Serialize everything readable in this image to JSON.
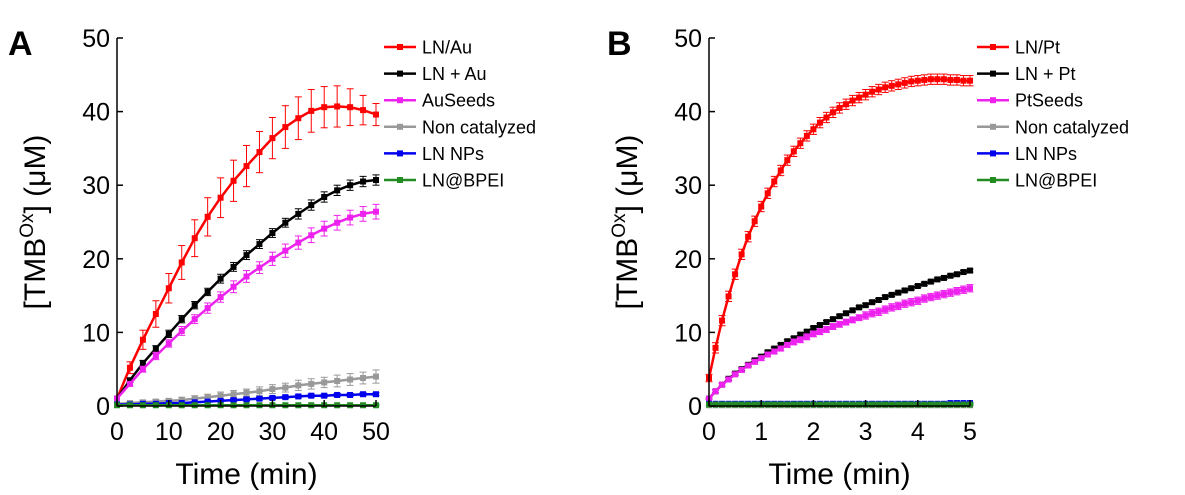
{
  "chart_data": [
    {
      "type": "line",
      "panel_label": "A",
      "xlabel": "Time (min)",
      "ylabel_main": "[TMB",
      "ylabel_sup": "Ox",
      "ylabel_rest": "] (μM)",
      "xlim": [
        0,
        50
      ],
      "ylim": [
        0,
        50
      ],
      "xticks": [
        "0",
        "10",
        "20",
        "30",
        "40",
        "50"
      ],
      "yticks": [
        "0",
        "10",
        "20",
        "30",
        "40",
        "50"
      ],
      "grid": false,
      "legend_position": "outside-right",
      "x": [
        0,
        2.5,
        5,
        7.5,
        10,
        12.5,
        15,
        17.5,
        20,
        22.5,
        25,
        27.5,
        30,
        32.5,
        35,
        37.5,
        40,
        42.5,
        45,
        47.5,
        50
      ],
      "series": [
        {
          "name": "LN/Au",
          "color": "#ff0000",
          "values": [
            1.0,
            5.2,
            9.0,
            12.5,
            16.0,
            19.5,
            22.8,
            25.7,
            28.3,
            30.6,
            32.6,
            34.5,
            36.4,
            37.9,
            39.1,
            40.1,
            40.6,
            40.7,
            40.6,
            40.2,
            39.6
          ],
          "errors": [
            0,
            0.8,
            1.3,
            1.8,
            2.0,
            2.3,
            2.5,
            2.6,
            2.7,
            2.8,
            2.8,
            2.8,
            2.8,
            2.9,
            2.9,
            2.9,
            2.8,
            2.8,
            2.5,
            2.0,
            1.5
          ]
        },
        {
          "name": "LN + Au",
          "color": "#000000",
          "values": [
            1.0,
            3.5,
            5.8,
            7.8,
            9.8,
            11.8,
            13.7,
            15.5,
            17.3,
            18.9,
            20.5,
            22.0,
            23.5,
            24.9,
            26.1,
            27.3,
            28.4,
            29.3,
            30.0,
            30.5,
            30.7
          ],
          "errors": [
            0,
            0.3,
            0.4,
            0.4,
            0.5,
            0.5,
            0.5,
            0.5,
            0.6,
            0.6,
            0.6,
            0.6,
            0.6,
            0.6,
            0.7,
            0.7,
            0.7,
            0.7,
            0.7,
            0.7,
            0.7
          ]
        },
        {
          "name": "AuSeeds",
          "color": "#ee22ee",
          "values": [
            1.0,
            3.0,
            5.0,
            6.8,
            8.5,
            10.2,
            11.8,
            13.3,
            14.8,
            16.2,
            17.6,
            18.8,
            20.0,
            21.1,
            22.2,
            23.2,
            24.1,
            24.9,
            25.6,
            26.1,
            26.4
          ],
          "errors": [
            0,
            0.3,
            0.4,
            0.5,
            0.5,
            0.6,
            0.6,
            0.7,
            0.7,
            0.8,
            0.8,
            0.8,
            0.9,
            0.9,
            0.9,
            1.0,
            1.0,
            1.0,
            1.0,
            1.0,
            1.0
          ]
        },
        {
          "name": "Non catalyzed",
          "color": "#999999",
          "values": [
            0.3,
            0.4,
            0.5,
            0.6,
            0.7,
            0.8,
            1.0,
            1.2,
            1.4,
            1.6,
            1.8,
            2.0,
            2.3,
            2.5,
            2.8,
            3.0,
            3.2,
            3.4,
            3.6,
            3.8,
            4.0
          ],
          "errors": [
            0,
            0.2,
            0.3,
            0.3,
            0.3,
            0.4,
            0.4,
            0.4,
            0.5,
            0.5,
            0.5,
            0.6,
            0.6,
            0.6,
            0.7,
            0.7,
            0.7,
            0.8,
            0.8,
            0.8,
            0.9
          ]
        },
        {
          "name": "LN NPs",
          "color": "#0000ee",
          "values": [
            0.2,
            0.2,
            0.3,
            0.3,
            0.4,
            0.4,
            0.5,
            0.6,
            0.7,
            0.8,
            0.9,
            1.0,
            1.1,
            1.2,
            1.3,
            1.4,
            1.4,
            1.5,
            1.5,
            1.6,
            1.6
          ],
          "errors": [
            0,
            0.1,
            0.1,
            0.1,
            0.1,
            0.1,
            0.1,
            0.1,
            0.1,
            0.2,
            0.2,
            0.2,
            0.2,
            0.2,
            0.2,
            0.2,
            0.2,
            0.2,
            0.2,
            0.2,
            0.2
          ]
        },
        {
          "name": "LN@BPEI",
          "color": "#228b22",
          "values": [
            0.1,
            0.1,
            0.1,
            0.1,
            0.1,
            0.1,
            0.1,
            0.1,
            0.1,
            0.1,
            0.1,
            0.1,
            0.1,
            0.1,
            0.1,
            0.1,
            0.1,
            0.1,
            0.1,
            0.1,
            0.1
          ],
          "errors": [
            0,
            0.1,
            0.1,
            0.1,
            0.1,
            0.1,
            0.1,
            0.1,
            0.1,
            0.1,
            0.1,
            0.1,
            0.1,
            0.1,
            0.1,
            0.1,
            0.1,
            0.1,
            0.1,
            0.1,
            0.1
          ]
        }
      ]
    },
    {
      "type": "line",
      "panel_label": "B",
      "xlabel": "Time (min)",
      "ylabel_main": "[TMB",
      "ylabel_sup": "Ox",
      "ylabel_rest": "] (μM)",
      "xlim": [
        0,
        5
      ],
      "ylim": [
        0,
        50
      ],
      "xticks": [
        "0",
        "1",
        "2",
        "3",
        "4",
        "5"
      ],
      "yticks": [
        "0",
        "10",
        "20",
        "30",
        "40",
        "50"
      ],
      "grid": false,
      "legend_position": "outside-right",
      "x": [
        0,
        0.125,
        0.25,
        0.375,
        0.5,
        0.625,
        0.75,
        0.875,
        1.0,
        1.125,
        1.25,
        1.375,
        1.5,
        1.625,
        1.75,
        1.875,
        2.0,
        2.125,
        2.25,
        2.375,
        2.5,
        2.625,
        2.75,
        2.875,
        3.0,
        3.125,
        3.25,
        3.375,
        3.5,
        3.625,
        3.75,
        3.875,
        4.0,
        4.125,
        4.25,
        4.375,
        4.5,
        4.625,
        4.75,
        4.875,
        5.0
      ],
      "series": [
        {
          "name": "LN/Pt",
          "color": "#ff0000",
          "values": [
            3.8,
            7.9,
            11.6,
            14.9,
            17.9,
            20.6,
            23.0,
            25.1,
            27.1,
            28.9,
            30.5,
            32.0,
            33.4,
            34.6,
            35.7,
            36.7,
            37.6,
            38.5,
            39.2,
            39.9,
            40.5,
            41.0,
            41.5,
            41.9,
            42.3,
            42.7,
            43.0,
            43.3,
            43.5,
            43.7,
            43.9,
            44.1,
            44.2,
            44.3,
            44.4,
            44.4,
            44.4,
            44.3,
            44.3,
            44.2,
            44.2
          ],
          "errors": [
            0.5,
            0.7,
            0.7,
            0.7,
            0.7,
            0.7,
            0.7,
            0.7,
            0.7,
            0.7,
            0.7,
            0.7,
            0.7,
            0.7,
            0.7,
            0.7,
            0.7,
            0.7,
            0.7,
            0.7,
            0.7,
            0.7,
            0.7,
            0.7,
            0.7,
            0.7,
            0.7,
            0.7,
            0.7,
            0.7,
            0.7,
            0.7,
            0.7,
            0.7,
            0.7,
            0.7,
            0.7,
            0.7,
            0.7,
            0.7,
            0.7
          ]
        },
        {
          "name": "LN + Pt",
          "color": "#000000",
          "values": [
            1.0,
            2.0,
            2.9,
            3.7,
            4.4,
            5.0,
            5.6,
            6.2,
            6.7,
            7.3,
            7.8,
            8.3,
            8.8,
            9.2,
            9.7,
            10.1,
            10.6,
            11.0,
            11.4,
            11.8,
            12.2,
            12.6,
            13.0,
            13.4,
            13.7,
            14.1,
            14.4,
            14.8,
            15.1,
            15.4,
            15.7,
            16.0,
            16.3,
            16.6,
            16.9,
            17.2,
            17.4,
            17.7,
            17.9,
            18.2,
            18.4
          ],
          "errors": [
            0.1,
            0.2,
            0.2,
            0.2,
            0.2,
            0.2,
            0.2,
            0.2,
            0.2,
            0.2,
            0.2,
            0.2,
            0.2,
            0.2,
            0.2,
            0.2,
            0.2,
            0.2,
            0.2,
            0.2,
            0.2,
            0.2,
            0.2,
            0.2,
            0.2,
            0.2,
            0.2,
            0.2,
            0.2,
            0.2,
            0.2,
            0.2,
            0.2,
            0.2,
            0.2,
            0.2,
            0.2,
            0.2,
            0.2,
            0.2,
            0.2
          ]
        },
        {
          "name": "PtSeeds",
          "color": "#ee22ee",
          "values": [
            1.0,
            2.0,
            2.9,
            3.6,
            4.3,
            4.9,
            5.5,
            6.0,
            6.5,
            7.0,
            7.4,
            7.8,
            8.3,
            8.7,
            9.0,
            9.4,
            9.8,
            10.1,
            10.4,
            10.8,
            11.1,
            11.4,
            11.7,
            12.0,
            12.3,
            12.6,
            12.8,
            13.1,
            13.4,
            13.6,
            13.9,
            14.1,
            14.3,
            14.6,
            14.8,
            15.0,
            15.2,
            15.4,
            15.6,
            15.8,
            16.0
          ],
          "errors": [
            0.1,
            0.2,
            0.2,
            0.2,
            0.2,
            0.3,
            0.3,
            0.3,
            0.3,
            0.3,
            0.3,
            0.3,
            0.3,
            0.4,
            0.4,
            0.4,
            0.4,
            0.4,
            0.4,
            0.4,
            0.4,
            0.4,
            0.4,
            0.4,
            0.5,
            0.5,
            0.5,
            0.5,
            0.5,
            0.5,
            0.5,
            0.5,
            0.5,
            0.5,
            0.5,
            0.5,
            0.5,
            0.5,
            0.5,
            0.5,
            0.5
          ]
        },
        {
          "name": "Non catalyzed",
          "color": "#999999",
          "values": [
            0.1,
            0.1,
            0.1,
            0.1,
            0.1,
            0.1,
            0.1,
            0.1,
            0.1,
            0.1,
            0.1,
            0.1,
            0.1,
            0.1,
            0.1,
            0.1,
            0.1,
            0.1,
            0.1,
            0.1,
            0.1,
            0.1,
            0.1,
            0.1,
            0.1,
            0.1,
            0.1,
            0.1,
            0.1,
            0.1,
            0.1,
            0.1,
            0.1,
            0.1,
            0.1,
            0.1,
            0.1,
            0.1,
            0.1,
            0.1,
            0.1
          ],
          "errors": [
            0,
            0.1,
            0.1,
            0.1,
            0.1,
            0.1,
            0.1,
            0.1,
            0.1,
            0.1,
            0.1,
            0.1,
            0.1,
            0.1,
            0.1,
            0.1,
            0.1,
            0.1,
            0.1,
            0.1,
            0.1,
            0.1,
            0.1,
            0.1,
            0.1,
            0.1,
            0.1,
            0.1,
            0.1,
            0.1,
            0.1,
            0.1,
            0.1,
            0.1,
            0.1,
            0.1,
            0.1,
            0.1,
            0.1,
            0.1,
            0.1
          ]
        },
        {
          "name": "LN NPs",
          "color": "#0000ee",
          "values": [
            0.3,
            0.3,
            0.3,
            0.3,
            0.3,
            0.3,
            0.3,
            0.3,
            0.3,
            0.3,
            0.3,
            0.3,
            0.3,
            0.3,
            0.3,
            0.3,
            0.3,
            0.3,
            0.3,
            0.3,
            0.3,
            0.3,
            0.3,
            0.3,
            0.3,
            0.3,
            0.3,
            0.3,
            0.3,
            0.3,
            0.3,
            0.3,
            0.3,
            0.3,
            0.3,
            0.3,
            0.3,
            0.4,
            0.4,
            0.4,
            0.4
          ],
          "errors": [
            0,
            0.1,
            0.1,
            0.1,
            0.1,
            0.1,
            0.1,
            0.1,
            0.1,
            0.1,
            0.1,
            0.1,
            0.1,
            0.1,
            0.1,
            0.1,
            0.1,
            0.1,
            0.1,
            0.1,
            0.1,
            0.1,
            0.1,
            0.1,
            0.1,
            0.1,
            0.1,
            0.1,
            0.1,
            0.1,
            0.1,
            0.1,
            0.1,
            0.1,
            0.1,
            0.1,
            0.1,
            0.1,
            0.1,
            0.1,
            0.1
          ]
        },
        {
          "name": "LN@BPEI",
          "color": "#228b22",
          "values": [
            0.2,
            0.2,
            0.2,
            0.2,
            0.2,
            0.2,
            0.2,
            0.2,
            0.2,
            0.2,
            0.2,
            0.2,
            0.2,
            0.2,
            0.2,
            0.2,
            0.2,
            0.2,
            0.2,
            0.2,
            0.2,
            0.2,
            0.2,
            0.2,
            0.2,
            0.2,
            0.2,
            0.2,
            0.2,
            0.2,
            0.2,
            0.2,
            0.2,
            0.2,
            0.2,
            0.2,
            0.2,
            0.2,
            0.2,
            0.2,
            0.2
          ],
          "errors": [
            0,
            0.1,
            0.1,
            0.1,
            0.1,
            0.1,
            0.1,
            0.1,
            0.1,
            0.1,
            0.1,
            0.1,
            0.1,
            0.1,
            0.1,
            0.1,
            0.1,
            0.1,
            0.1,
            0.1,
            0.1,
            0.1,
            0.1,
            0.1,
            0.1,
            0.1,
            0.1,
            0.1,
            0.1,
            0.1,
            0.1,
            0.1,
            0.1,
            0.1,
            0.1,
            0.1,
            0.1,
            0.1,
            0.1,
            0.1,
            0.1
          ]
        }
      ]
    }
  ]
}
